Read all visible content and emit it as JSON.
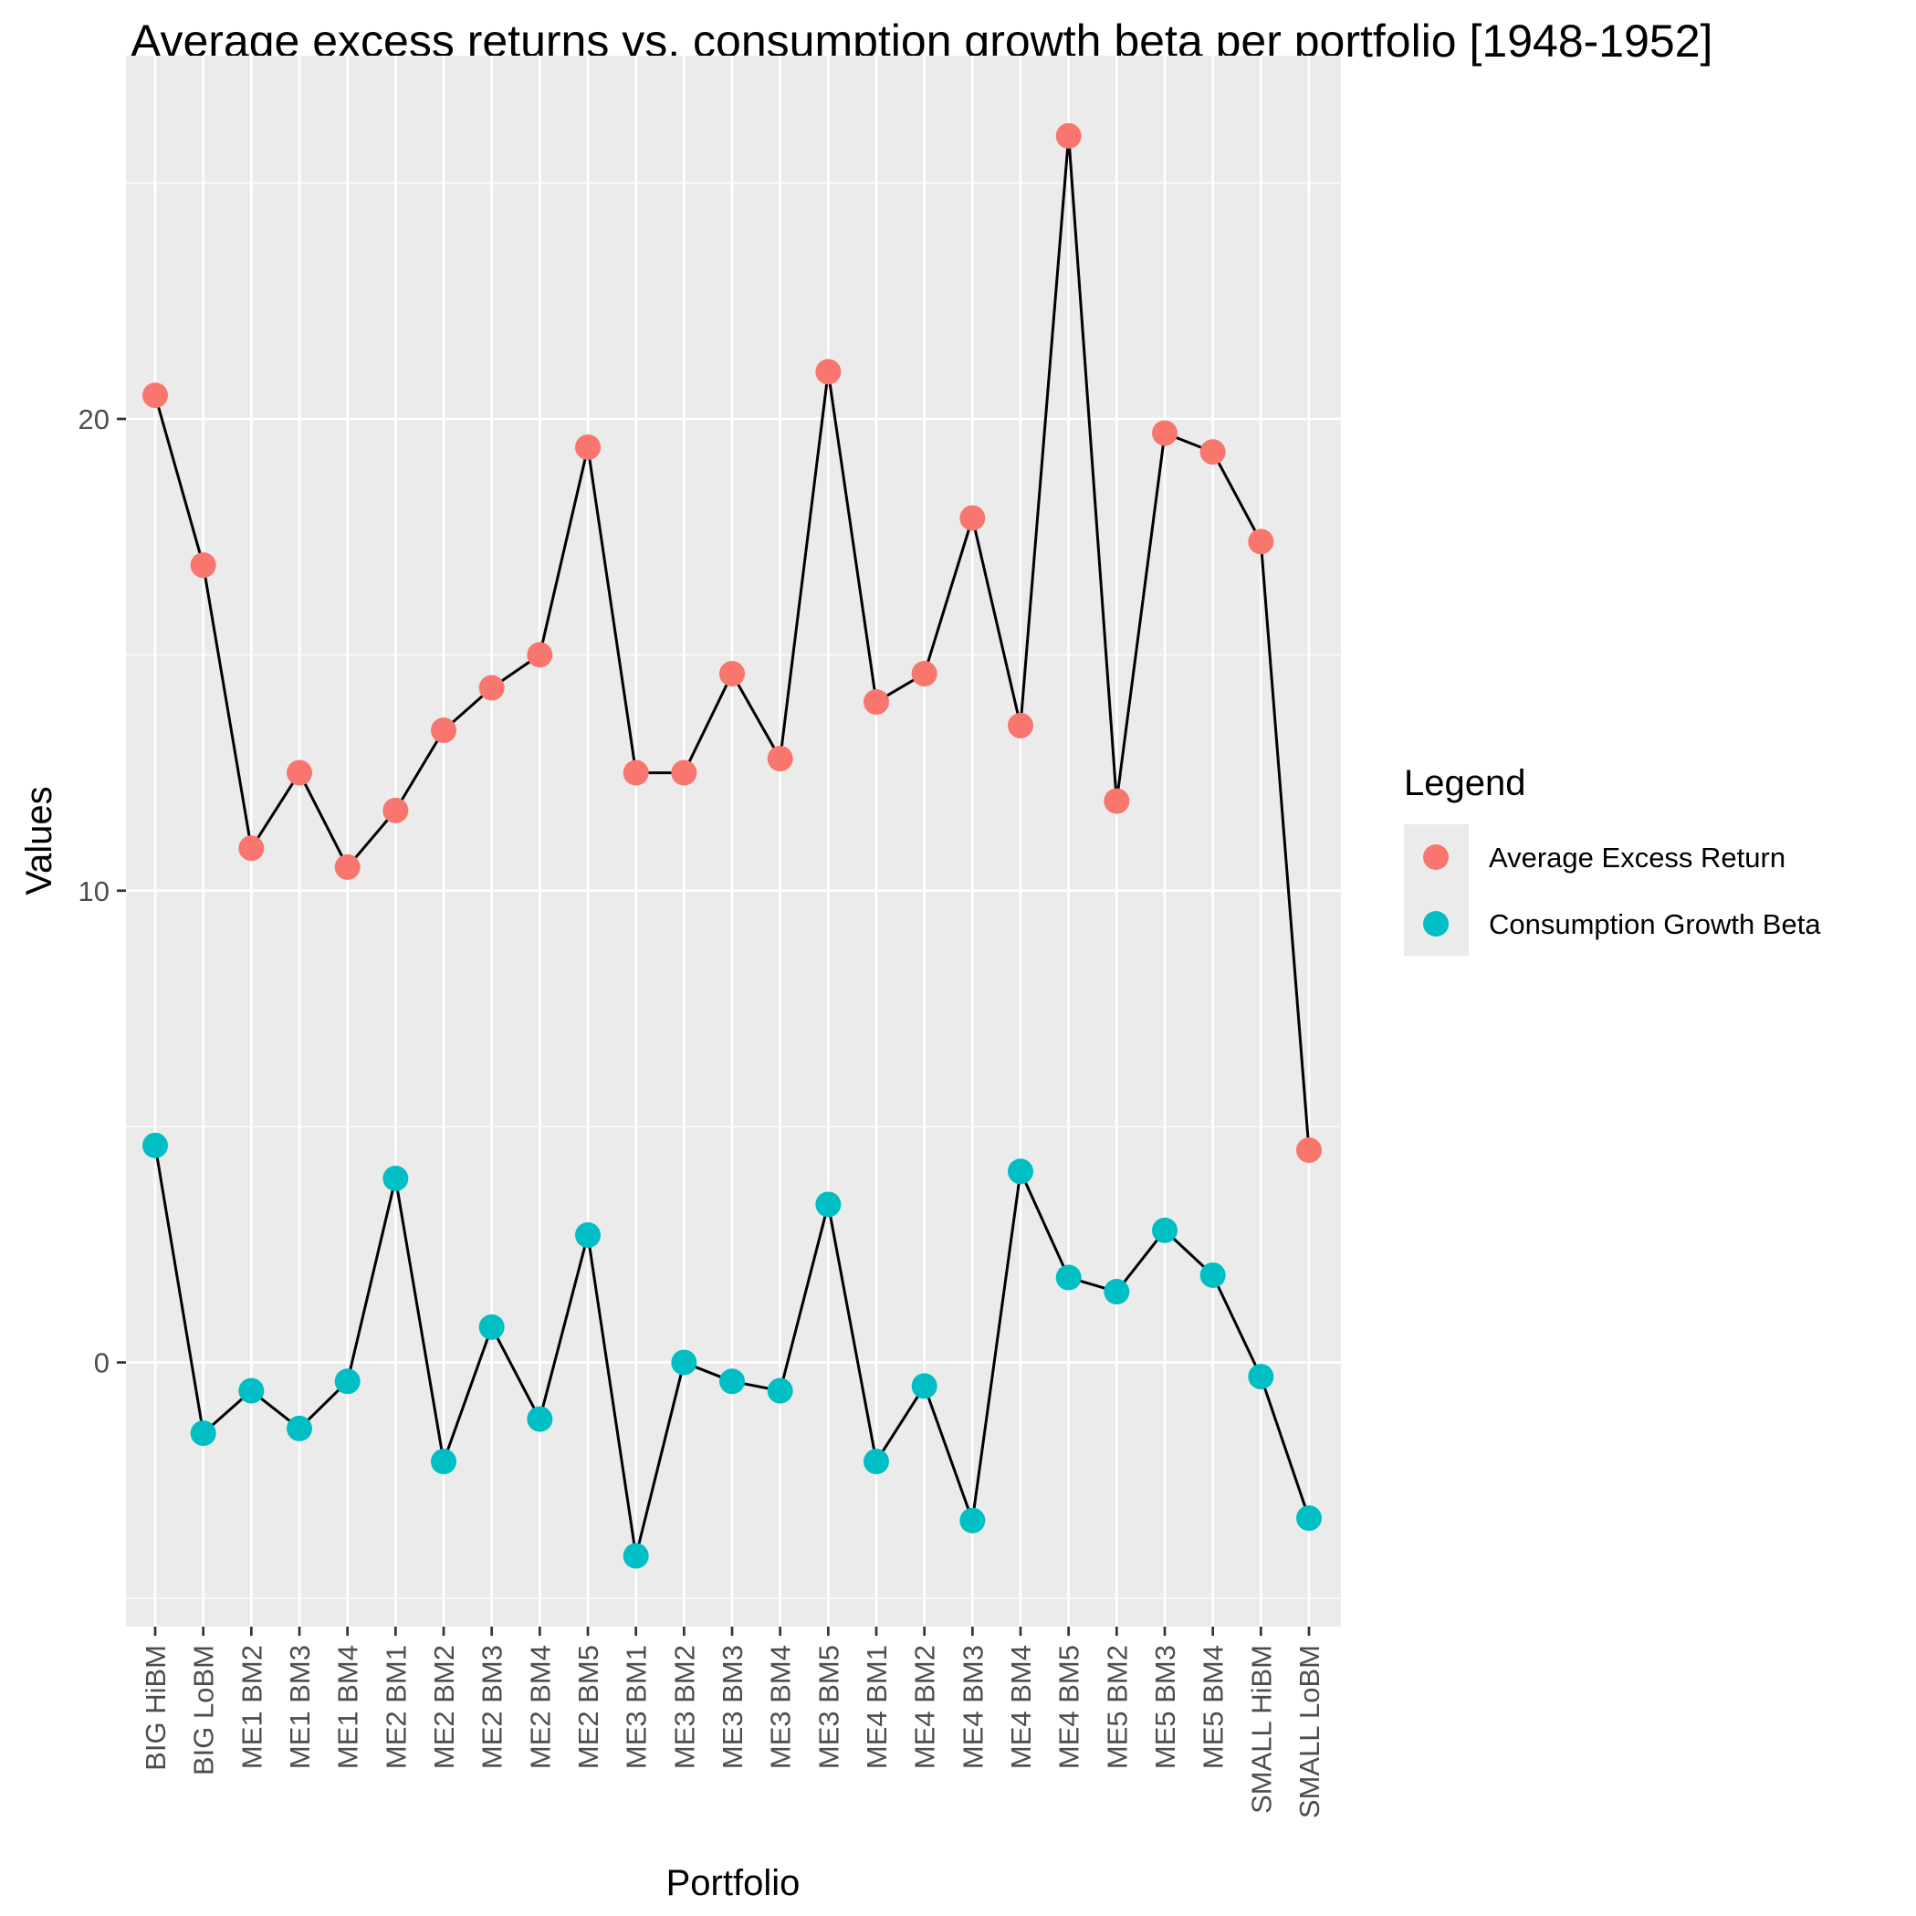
{
  "chart_data": {
    "type": "line",
    "title": "Average excess returns vs. consumption growth beta per portfolio [1948-1952]",
    "xlabel": "Portfolio",
    "ylabel": "Values",
    "categories": [
      "BIG HiBM",
      "BIG LoBM",
      "ME1 BM2",
      "ME1 BM3",
      "ME1 BM4",
      "ME2 BM1",
      "ME2 BM2",
      "ME2 BM3",
      "ME2 BM4",
      "ME2 BM5",
      "ME3 BM1",
      "ME3 BM2",
      "ME3 BM3",
      "ME3 BM4",
      "ME3 BM5",
      "ME4 BM1",
      "ME4 BM2",
      "ME4 BM3",
      "ME4 BM4",
      "ME4 BM5",
      "ME5 BM2",
      "ME5 BM3",
      "ME5 BM4",
      "SMALL HiBM",
      "SMALL LoBM"
    ],
    "y_ticks": [
      0,
      10,
      20
    ],
    "y_tick_labels": [
      "0",
      "10",
      "20"
    ],
    "ylim": [
      -5.6,
      27.7
    ],
    "grid": true,
    "legend": {
      "title": "Legend",
      "position": "right"
    },
    "series": [
      {
        "name": "Average Excess Return",
        "color": "#F8766D",
        "values": [
          20.5,
          16.9,
          10.9,
          12.5,
          10.5,
          11.7,
          13.4,
          14.3,
          15.0,
          19.4,
          12.5,
          12.5,
          14.6,
          12.8,
          21.0,
          14.0,
          14.6,
          17.9,
          13.5,
          26.0,
          11.9,
          19.7,
          19.3,
          17.4,
          4.5
        ]
      },
      {
        "name": "Consumption Growth Beta",
        "color": "#00BFC4",
        "values": [
          4.6,
          -1.5,
          -0.6,
          -1.4,
          -0.4,
          3.9,
          -2.1,
          0.75,
          -1.2,
          2.7,
          -4.1,
          0.0,
          -0.4,
          -0.6,
          3.35,
          -2.1,
          -0.5,
          -3.35,
          4.05,
          1.8,
          1.5,
          2.8,
          1.85,
          -0.3,
          -3.3
        ]
      }
    ]
  }
}
